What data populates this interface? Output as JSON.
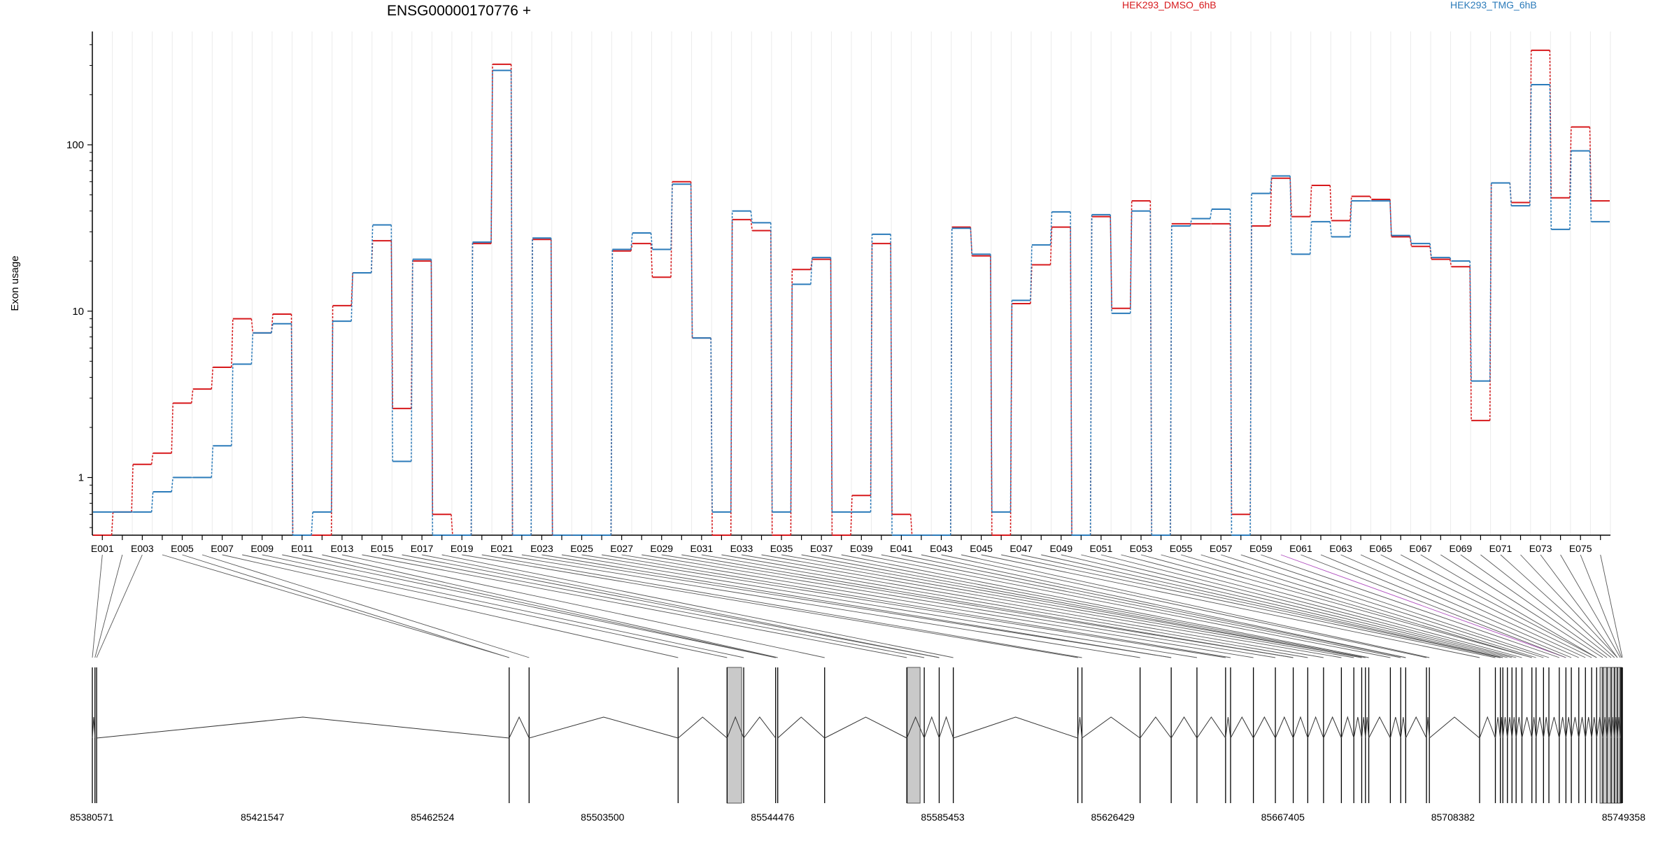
{
  "chart_data": {
    "type": "line",
    "title": "ENSG00000170776 +",
    "ylabel": "Exon usage",
    "xlabel": "",
    "yscale": "log",
    "ylim": [
      0.45,
      480
    ],
    "y_tick_labels": [
      "1",
      "10",
      "100"
    ],
    "grid": "vertical",
    "legend_position": "top",
    "series": [
      {
        "name": "HEK293_DMSO_6hB",
        "color": "#d7191c",
        "values": [
          0.45,
          0.62,
          1.2,
          1.4,
          2.8,
          3.4,
          4.6,
          9.0,
          7.4,
          9.6,
          0.45,
          0.45,
          10.8,
          17,
          26.5,
          2.6,
          20.0,
          0.6,
          0.45,
          25.5,
          305,
          0.45,
          27.0,
          0.45,
          0.45,
          0.45,
          23.0,
          25.5,
          16,
          60,
          6.9,
          0.45,
          35.5,
          30.5,
          0.45,
          17.8,
          20.5,
          0.45,
          0.78,
          25.5,
          0.6,
          0.45,
          0.45,
          32,
          21.5,
          0.45,
          11.1,
          19.0,
          32,
          0.45,
          37,
          10.4,
          46,
          0.45,
          33.5,
          33.5,
          33.5,
          0.6,
          32.5,
          63,
          37,
          57,
          35,
          49,
          47,
          28,
          24.5,
          20.5,
          18.5,
          2.2,
          59,
          45,
          370,
          48,
          128,
          46
        ]
      },
      {
        "name": "HEK293_TMG_6hB",
        "color": "#2b7bba",
        "values": [
          0.62,
          0.62,
          0.62,
          0.82,
          1.0,
          1.0,
          1.55,
          4.8,
          7.4,
          8.4,
          0.45,
          0.62,
          8.7,
          17,
          33,
          1.25,
          20.5,
          0.45,
          0.45,
          26,
          280,
          0.45,
          27.5,
          0.45,
          0.45,
          0.45,
          23.5,
          29.5,
          23.5,
          58,
          6.9,
          0.62,
          40,
          34,
          0.62,
          14.5,
          21,
          0.62,
          0.62,
          29,
          0.45,
          0.45,
          0.45,
          31.5,
          22,
          0.62,
          11.6,
          25,
          39.5,
          0.45,
          38,
          9.7,
          40,
          0.45,
          32.5,
          36,
          41,
          0.45,
          51,
          65,
          22,
          34.5,
          28,
          46,
          46,
          28.5,
          25.5,
          21,
          20,
          3.8,
          59,
          43,
          230,
          31,
          92,
          34.5
        ]
      }
    ],
    "categories": [
      "E001",
      "E002",
      "E003",
      "E004",
      "E005",
      "E006",
      "E007",
      "E008",
      "E009",
      "E010",
      "E011",
      "E012",
      "E013",
      "E014",
      "E015",
      "E016",
      "E017",
      "E018",
      "E019",
      "E020",
      "E021",
      "E022",
      "E023",
      "E024",
      "E025",
      "E026",
      "E027",
      "E028",
      "E029",
      "E030",
      "E031",
      "E032",
      "E033",
      "E034",
      "E035",
      "E036",
      "E037",
      "E038",
      "E039",
      "E040",
      "E041",
      "E042",
      "E043",
      "E044",
      "E045",
      "E046",
      "E047",
      "E048",
      "E049",
      "E050",
      "E051",
      "E052",
      "E053",
      "E054",
      "E055",
      "E056",
      "E057",
      "E058",
      "E059",
      "E060",
      "E061",
      "E062",
      "E063",
      "E064",
      "E065",
      "E066",
      "E067",
      "E068",
      "E069",
      "E070",
      "E071",
      "E072",
      "E073",
      "E074",
      "E075",
      "E076"
    ],
    "x_tick_labels": [
      "E001",
      "E003",
      "E005",
      "E007",
      "E009",
      "E011",
      "E013",
      "E015",
      "E017",
      "E019",
      "E021",
      "E023",
      "E025",
      "E027",
      "E029",
      "E031",
      "E033",
      "E035",
      "E037",
      "E039",
      "E041",
      "E043",
      "E045",
      "E047",
      "E049",
      "E051",
      "E053",
      "E055",
      "E057",
      "E059",
      "E061",
      "E063",
      "E065",
      "E067",
      "E069",
      "E071",
      "E073",
      "E075"
    ],
    "gene_model": {
      "range": [
        85380571,
        85749358
      ],
      "tick_labels": [
        "85380571",
        "85421547",
        "85462524",
        "85503500",
        "85544476",
        "85585453",
        "85626429",
        "85667405",
        "85708382",
        "85749358"
      ],
      "tick_values": [
        85380571,
        85421547,
        85462524,
        85503500,
        85544476,
        85585453,
        85626429,
        85667405,
        85708382,
        85749358
      ],
      "exon_starts": [
        85380571,
        85381200,
        85381600,
        85481000,
        85485800,
        85521700,
        85533500,
        85537500,
        85545200,
        85545700,
        85557000,
        85576800,
        85581000,
        85584600,
        85588000,
        85618000,
        85619000,
        85633000,
        85640500,
        85646700,
        85653600,
        85654800,
        85660300,
        85665600,
        85669900,
        85673400,
        85677200,
        85681500,
        85684500,
        85686400,
        85687300,
        85688100,
        85693300,
        85695800,
        85697000,
        85702000,
        85702700,
        85714800,
        85718600,
        85719800,
        85720400,
        85721500,
        85722600,
        85723600,
        85725000,
        85727400,
        85728400,
        85730200,
        85731500,
        85734000,
        85735600,
        85736900,
        85738700,
        85740300,
        85741800,
        85743000,
        85744500,
        85745500,
        85746500,
        85747300,
        85748000,
        85748700,
        85749000,
        85749200
      ],
      "shaded_regions": [
        [
          85533500,
          85537000
        ],
        [
          85576900,
          85580000
        ],
        [
          85743800,
          85749000
        ]
      ],
      "highlight_link": "E060",
      "highlight_color": "#b04fbf"
    }
  }
}
